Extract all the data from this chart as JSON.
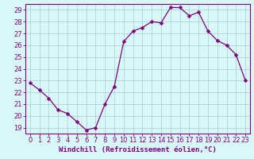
{
  "x": [
    0,
    1,
    2,
    3,
    4,
    5,
    6,
    7,
    8,
    9,
    10,
    11,
    12,
    13,
    14,
    15,
    16,
    17,
    18,
    19,
    20,
    21,
    22,
    23
  ],
  "y": [
    22.8,
    22.2,
    21.5,
    20.5,
    20.2,
    19.5,
    18.8,
    19.0,
    21.0,
    22.5,
    26.3,
    27.2,
    27.5,
    28.0,
    27.9,
    29.2,
    29.2,
    28.5,
    28.8,
    27.2,
    26.4,
    26.0,
    25.2,
    23.0
  ],
  "line_color": "#800080",
  "marker": "D",
  "markersize": 2.5,
  "linewidth": 0.9,
  "background_color": "#d8f8f8",
  "grid_color": "#aacccc",
  "xlabel": "Windchill (Refroidissement éolien,°C)",
  "xlim": [
    -0.5,
    23.5
  ],
  "ylim": [
    18.5,
    29.5
  ],
  "yticks": [
    19,
    20,
    21,
    22,
    23,
    24,
    25,
    26,
    27,
    28,
    29
  ],
  "xticks": [
    0,
    1,
    2,
    3,
    4,
    5,
    6,
    7,
    8,
    9,
    10,
    11,
    12,
    13,
    14,
    15,
    16,
    17,
    18,
    19,
    20,
    21,
    22,
    23
  ],
  "tick_color": "#800080",
  "label_color": "#800080",
  "spine_color": "#800080",
  "xlabel_fontsize": 6.5,
  "tick_fontsize": 6.0
}
